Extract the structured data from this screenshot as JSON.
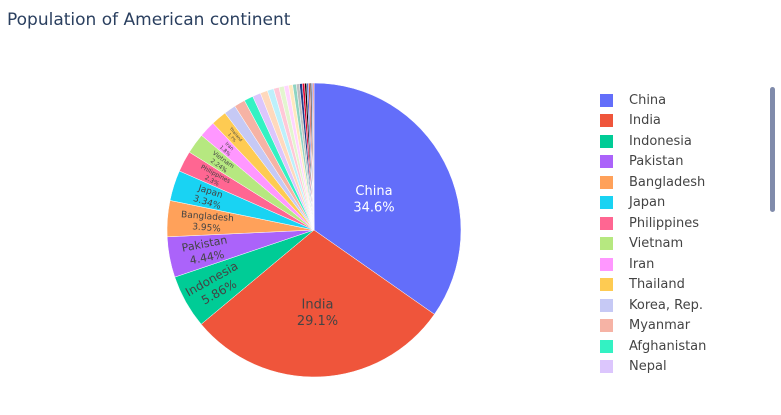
{
  "chart_data": {
    "type": "pie",
    "title": "Population of American continent",
    "sort": "descending",
    "direction": "clockwise",
    "start_angle_deg": 0,
    "slices": [
      {
        "label": "China",
        "percent": 34.6,
        "color": "#636efa",
        "show_label": true,
        "label_lines": [
          "China",
          "34.6%"
        ],
        "text_color": "#ffffff",
        "font": 13
      },
      {
        "label": "India",
        "percent": 29.1,
        "color": "#ef553b",
        "show_label": true,
        "label_lines": [
          "India",
          "29.1%"
        ],
        "text_color": "#444444",
        "font": 13
      },
      {
        "label": "Indonesia",
        "percent": 5.86,
        "color": "#00cc96",
        "show_label": true,
        "label_lines": [
          "Indonesia",
          "5.86%"
        ],
        "text_color": "#444444",
        "font": 12
      },
      {
        "label": "Pakistan",
        "percent": 4.44,
        "color": "#ab63fa",
        "show_label": true,
        "label_lines": [
          "Pakistan",
          "4.44%"
        ],
        "text_color": "#444444",
        "font": 11
      },
      {
        "label": "Bangladesh",
        "percent": 3.95,
        "color": "#ffa15a",
        "show_label": true,
        "label_lines": [
          "Bangladesh",
          "3.95%"
        ],
        "text_color": "#444444",
        "font": 9
      },
      {
        "label": "Japan",
        "percent": 3.34,
        "color": "#19d3f3",
        "show_label": true,
        "label_lines": [
          "Japan",
          "3.34%"
        ],
        "text_color": "#444444",
        "font": 9
      },
      {
        "label": "Philippines",
        "percent": 2.3,
        "color": "#ff6692",
        "show_label": true,
        "label_lines": [
          "Philippines",
          "2.3%"
        ],
        "text_color": "#444444",
        "font": 6
      },
      {
        "label": "Vietnam",
        "percent": 2.24,
        "color": "#b6e880",
        "show_label": true,
        "label_lines": [
          "Vietnam",
          "2.24%"
        ],
        "text_color": "#444444",
        "font": 6
      },
      {
        "label": "Iran",
        "percent": 1.8,
        "color": "#ff97ff",
        "show_label": true,
        "label_lines": [
          "Iran",
          "1.8%"
        ],
        "text_color": "#444444",
        "font": 5
      },
      {
        "label": "Thailand",
        "percent": 1.7,
        "color": "#fecb52",
        "show_label": true,
        "label_lines": [
          "Thailand",
          "1.7%"
        ],
        "text_color": "#444444",
        "font": 4
      },
      {
        "label": "Korea, Rep.",
        "percent": 1.3,
        "color": "#c6c9f5",
        "show_label": false
      },
      {
        "label": "Myanmar",
        "percent": 1.2,
        "color": "#f6b3a5",
        "show_label": false
      },
      {
        "label": "Afghanistan",
        "percent": 1.0,
        "color": "#33f2c3",
        "show_label": false
      },
      {
        "label": "Nepal",
        "percent": 0.9,
        "color": "#dcc6fd",
        "show_label": false
      },
      {
        "label": "",
        "percent": 0.8,
        "color": "#ffd9bd",
        "show_label": false
      },
      {
        "label": "",
        "percent": 0.7,
        "color": "#bdf0fb",
        "show_label": false
      },
      {
        "label": "",
        "percent": 0.6,
        "color": "#ffc9d8",
        "show_label": false
      },
      {
        "label": "",
        "percent": 0.55,
        "color": "#e3f5cf",
        "show_label": false
      },
      {
        "label": "",
        "percent": 0.5,
        "color": "#ffd5ff",
        "show_label": false
      },
      {
        "label": "",
        "percent": 0.45,
        "color": "#ffeabf",
        "show_label": false
      },
      {
        "label": "",
        "percent": 0.4,
        "color": "#8fd4c3",
        "show_label": false
      },
      {
        "label": "",
        "percent": 0.35,
        "color": "#c0c0c0",
        "show_label": false
      },
      {
        "label": "",
        "percent": 0.3,
        "color": "#1f3b8a",
        "show_label": false
      },
      {
        "label": "",
        "percent": 0.25,
        "color": "#e0002d",
        "show_label": false
      },
      {
        "label": "",
        "percent": 0.22,
        "color": "#0a0a0a",
        "show_label": false
      },
      {
        "label": "",
        "percent": 0.2,
        "color": "#5b6fd6",
        "show_label": false
      },
      {
        "label": "",
        "percent": 0.18,
        "color": "#d94a3a",
        "show_label": false
      },
      {
        "label": "",
        "percent": 0.16,
        "color": "#2a1e1e",
        "show_label": false
      },
      {
        "label": "",
        "percent": 0.14,
        "color": "#7a8ae8",
        "show_label": false
      },
      {
        "label": "",
        "percent": 0.12,
        "color": "#f07060",
        "show_label": false
      }
    ],
    "legend": {
      "position": "right",
      "entries": [
        "China",
        "India",
        "Indonesia",
        "Pakistan",
        "Bangladesh",
        "Japan",
        "Philippines",
        "Vietnam",
        "Iran",
        "Thailand",
        "Korea, Rep.",
        "Myanmar",
        "Afghanistan",
        "Nepal"
      ],
      "colors": [
        "#636efa",
        "#ef553b",
        "#00cc96",
        "#ab63fa",
        "#ffa15a",
        "#19d3f3",
        "#ff6692",
        "#b6e880",
        "#ff97ff",
        "#fecb52",
        "#c6c9f5",
        "#f6b3a5",
        "#33f2c3",
        "#dcc6fd"
      ],
      "scrollable": true
    }
  }
}
